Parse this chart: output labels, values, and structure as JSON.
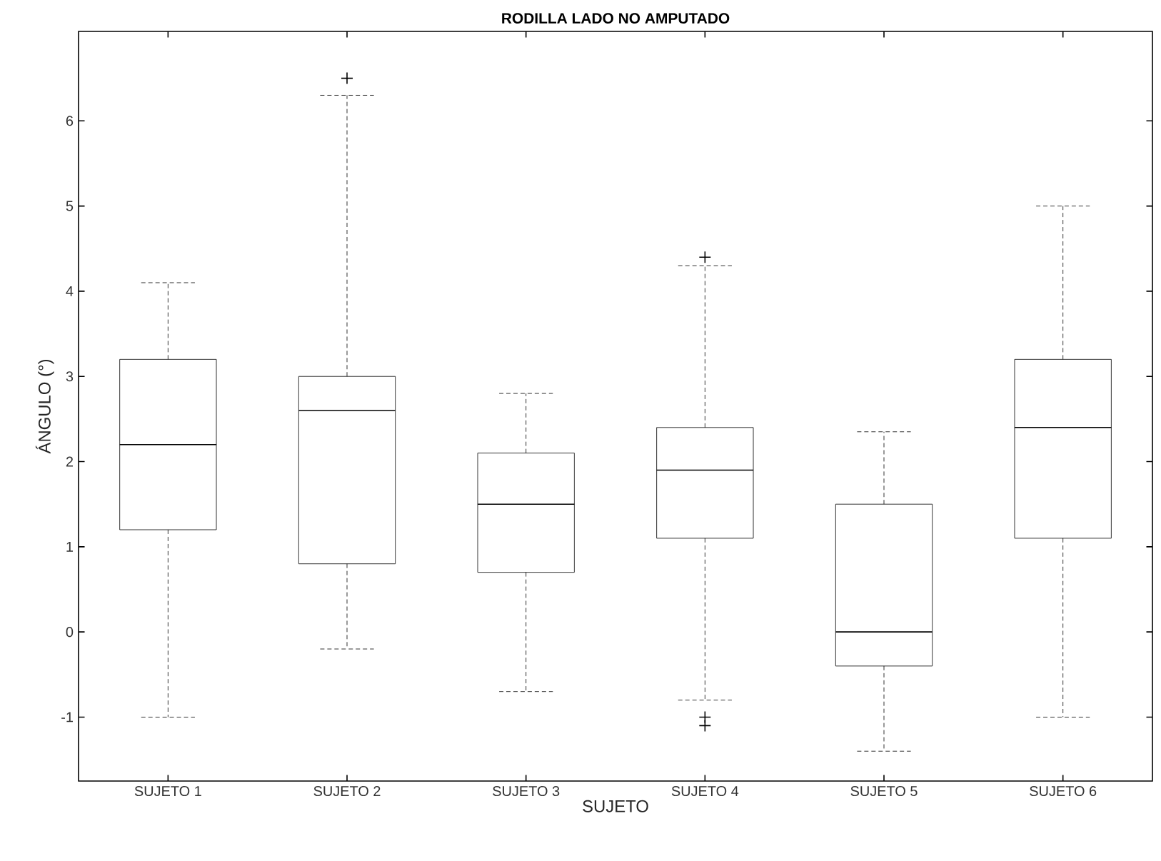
{
  "chart_data": {
    "type": "box",
    "title": "RODILLA LADO NO AMPUTADO",
    "xlabel": "SUJETO",
    "ylabel": "ÁNGULO (°)",
    "categories": [
      "SUJETO 1",
      "SUJETO 2",
      "SUJETO 3",
      "SUJETO 4",
      "SUJETO 5",
      "SUJETO 6"
    ],
    "boxes": [
      {
        "low": -1.0,
        "q1": 1.2,
        "median": 2.2,
        "q3": 3.2,
        "high": 4.1
      },
      {
        "low": -0.2,
        "q1": 0.8,
        "median": 2.6,
        "q3": 3.0,
        "high": 6.3,
        "outliers": [
          6.5
        ]
      },
      {
        "low": -0.7,
        "q1": 0.7,
        "median": 1.5,
        "q3": 2.1,
        "high": 2.8
      },
      {
        "low": -0.8,
        "q1": 1.1,
        "median": 1.9,
        "q3": 2.4,
        "high": 4.3,
        "outliers": [
          4.4,
          -1.0,
          -1.1
        ]
      },
      {
        "low": -1.4,
        "q1": -0.4,
        "median": 0.0,
        "q3": 1.5,
        "high": 2.35
      },
      {
        "low": -1.0,
        "q1": 1.1,
        "median": 2.4,
        "q3": 3.2,
        "high": 5.0
      }
    ],
    "color": "#000000",
    "ylim": [
      -1.75,
      7.05
    ],
    "yticks": [
      -1,
      0,
      1,
      2,
      3,
      4,
      5,
      6
    ],
    "grid": false
  }
}
